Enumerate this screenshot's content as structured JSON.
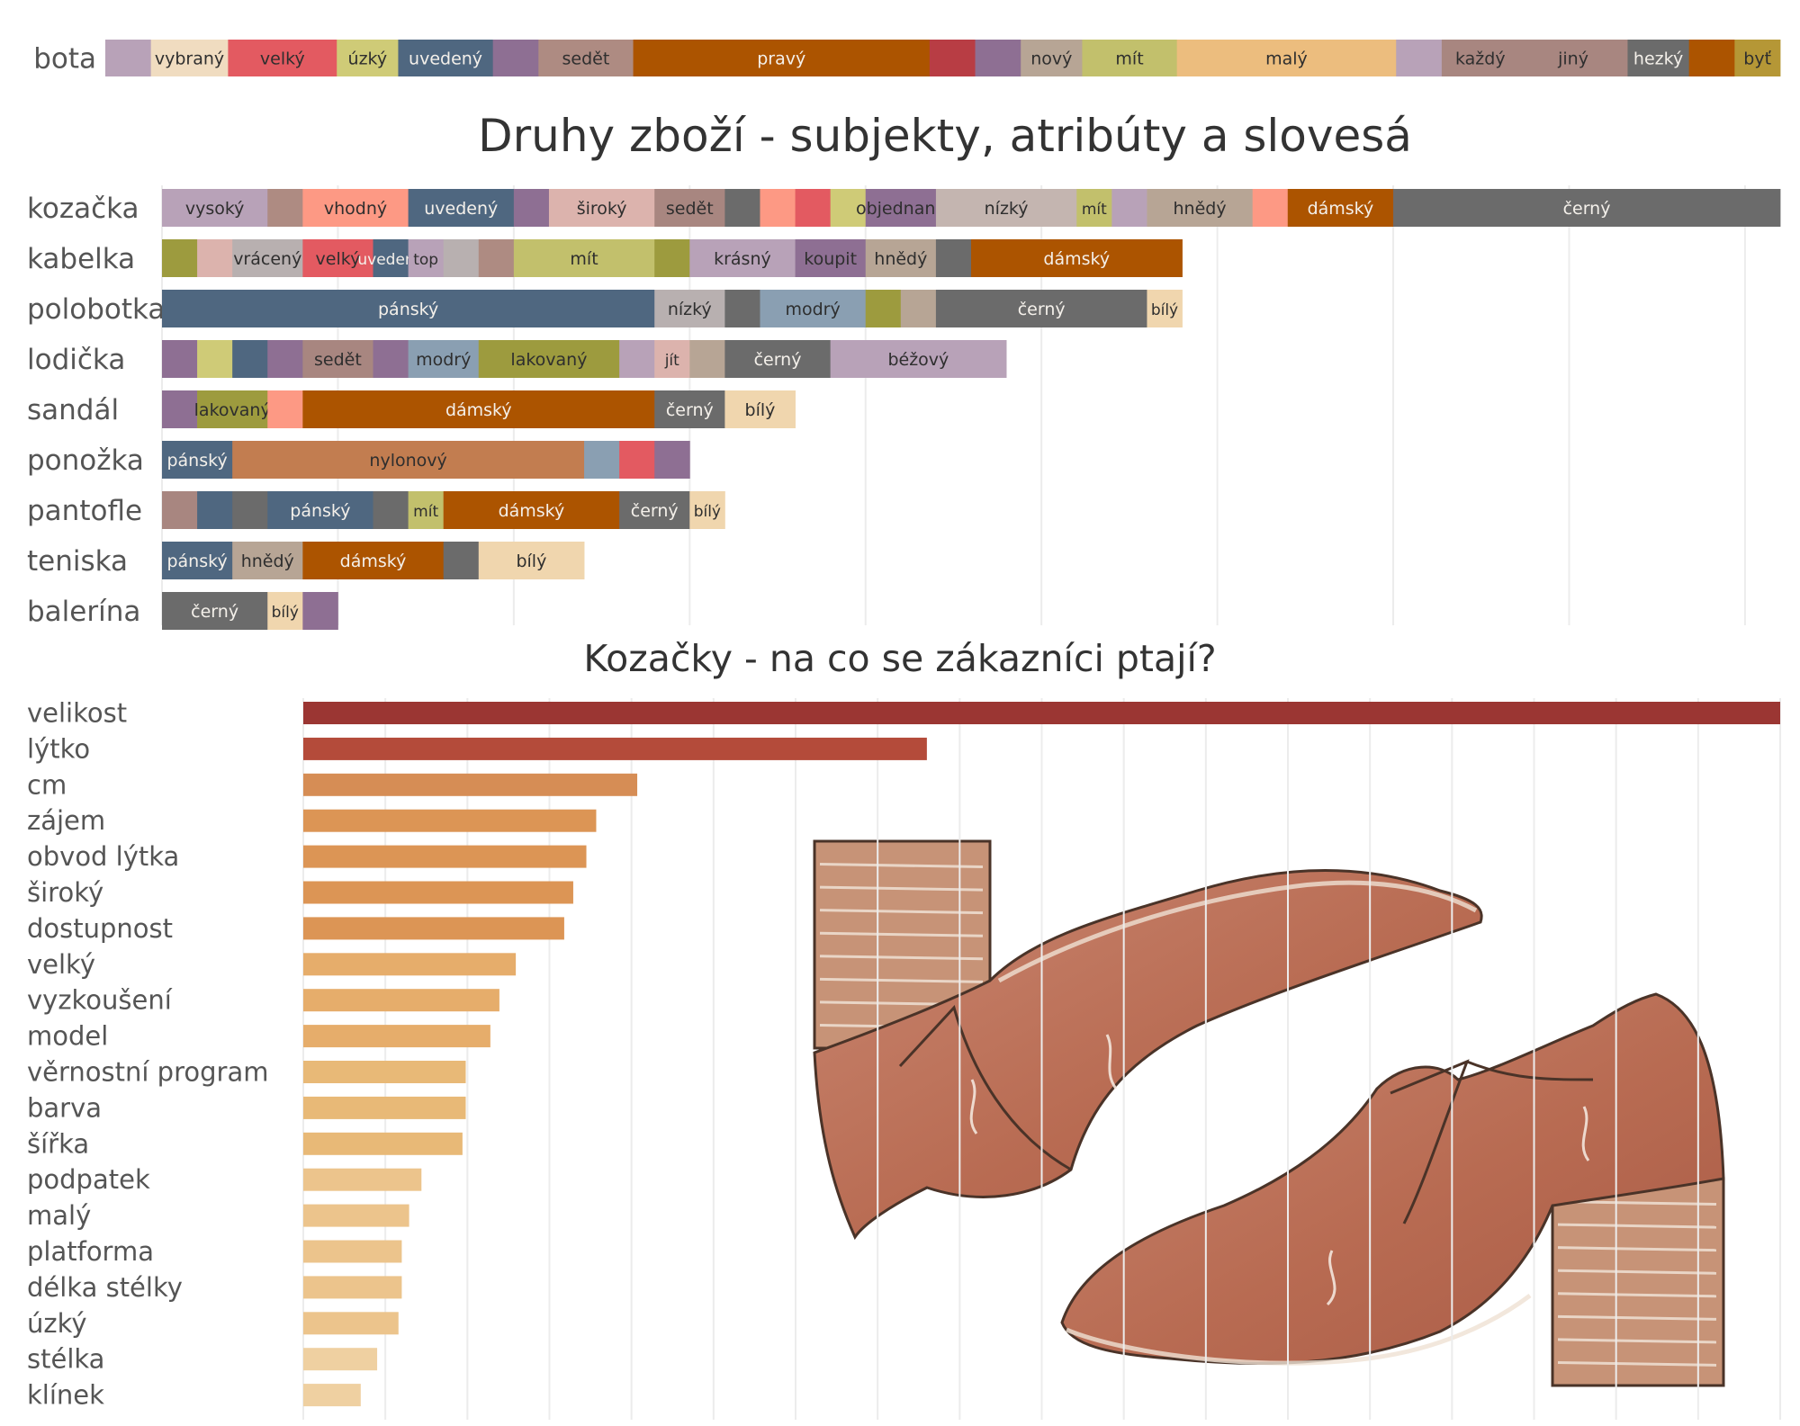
{
  "titles": {
    "main": "Druhy zboží - subjekty, atribúty a slovesá",
    "sub": "Kozačky - na co se zákazníci ptají?"
  },
  "illustration": {
    "icon": "ankle-boots-watercolor-illustration"
  },
  "chart_data": [
    {
      "type": "bar",
      "stacked": true,
      "orientation": "horizontal",
      "name": "bota",
      "grid": false,
      "rows": [
        {
          "label": "bota",
          "segments": [
            {
              "label": "",
              "value": 2.6,
              "color": "#b8a2b8"
            },
            {
              "label": "vybraný",
              "value": 4.4,
              "color": "#f0dcc0"
            },
            {
              "label": "velký",
              "value": 6.2,
              "color": "#e35a61"
            },
            {
              "label": "úzký",
              "value": 3.5,
              "color": "#cfcb77"
            },
            {
              "label": "uvedený",
              "value": 5.4,
              "color": "#4f6780"
            },
            {
              "label": "",
              "value": 2.6,
              "color": "#8e6f93"
            },
            {
              "label": "sedět",
              "value": 5.4,
              "color": "#ae8b82"
            },
            {
              "label": "pravý",
              "value": 16.9,
              "color": "#ac5400"
            },
            {
              "label": "",
              "value": 2.6,
              "color": "#b83d44"
            },
            {
              "label": "",
              "value": 2.6,
              "color": "#8e6f93"
            },
            {
              "label": "nový",
              "value": 3.5,
              "color": "#b7a595"
            },
            {
              "label": "mít",
              "value": 5.4,
              "color": "#c2c06c"
            },
            {
              "label": "malý",
              "value": 12.5,
              "color": "#ecbd7e"
            },
            {
              "label": "",
              "value": 2.6,
              "color": "#b8a2b8"
            },
            {
              "label": "každý",
              "value": 4.4,
              "color": "#a88680"
            },
            {
              "label": "jiný",
              "value": 6.2,
              "color": "#a88680"
            },
            {
              "label": "hezký",
              "value": 3.5,
              "color": "#6b6b6b"
            },
            {
              "label": "",
              "value": 2.6,
              "color": "#ac5400"
            },
            {
              "label": "byť",
              "value": 2.6,
              "color": "#b59736"
            }
          ]
        }
      ]
    },
    {
      "type": "bar",
      "stacked": true,
      "orientation": "horizontal",
      "title": "Druhy zboží - subjekty, atribúty a slovesá",
      "grid": true,
      "xlim": [
        0,
        46
      ],
      "rows": [
        {
          "label": "kozačka",
          "segments": [
            {
              "label": "vysoký",
              "value": 3,
              "color": "#b8a2b8"
            },
            {
              "label": "",
              "value": 1,
              "color": "#ae8b82"
            },
            {
              "label": "vhodný",
              "value": 3,
              "color": "#fd9984"
            },
            {
              "label": "uvedený",
              "value": 3,
              "color": "#4f6780"
            },
            {
              "label": "",
              "value": 1,
              "color": "#8e6f93"
            },
            {
              "label": "široký",
              "value": 3,
              "color": "#dcb3ad"
            },
            {
              "label": "sedět",
              "value": 2,
              "color": "#a88680"
            },
            {
              "label": "",
              "value": 1,
              "color": "#6b6b6b"
            },
            {
              "label": "",
              "value": 1,
              "color": "#fd9984"
            },
            {
              "label": "",
              "value": 1,
              "color": "#e35a61"
            },
            {
              "label": "",
              "value": 1,
              "color": "#cfcb77"
            },
            {
              "label": "objednaný",
              "value": 2,
              "color": "#8e6f93"
            },
            {
              "label": "nízký",
              "value": 4,
              "color": "#c4b5b0"
            },
            {
              "label": "mít",
              "value": 1,
              "color": "#c2c06c"
            },
            {
              "label": "",
              "value": 1,
              "color": "#b8a2b8"
            },
            {
              "label": "hnědý",
              "value": 3,
              "color": "#b7a595"
            },
            {
              "label": "",
              "value": 1,
              "color": "#fd9984"
            },
            {
              "label": "dámský",
              "value": 3,
              "color": "#ac5400"
            },
            {
              "label": "černý",
              "value": 11,
              "color": "#6b6b6b"
            }
          ]
        },
        {
          "label": "kabelka",
          "segments": [
            {
              "label": "",
              "value": 1,
              "color": "#9d9b3e"
            },
            {
              "label": "",
              "value": 1,
              "color": "#dcb3ad"
            },
            {
              "label": "vrácený",
              "value": 2,
              "color": "#b8b0b0"
            },
            {
              "label": "velký",
              "value": 2,
              "color": "#e35a61"
            },
            {
              "label": "uvedený",
              "value": 1,
              "color": "#4f6780"
            },
            {
              "label": "top",
              "value": 1,
              "color": "#b8a2b8"
            },
            {
              "label": "",
              "value": 1,
              "color": "#b8b0b0"
            },
            {
              "label": "",
              "value": 1,
              "color": "#ae8b82"
            },
            {
              "label": "mít",
              "value": 4,
              "color": "#c2c06c"
            },
            {
              "label": "",
              "value": 1,
              "color": "#9d9b3e"
            },
            {
              "label": "krásný",
              "value": 3,
              "color": "#b8a2b8"
            },
            {
              "label": "koupit",
              "value": 2,
              "color": "#8e6f93"
            },
            {
              "label": "hnědý",
              "value": 2,
              "color": "#b7a595"
            },
            {
              "label": "",
              "value": 1,
              "color": "#6b6b6b"
            },
            {
              "label": "dámský",
              "value": 6,
              "color": "#ac5400"
            }
          ]
        },
        {
          "label": "polobotka",
          "segments": [
            {
              "label": "pánský",
              "value": 14,
              "color": "#4f6780"
            },
            {
              "label": "nízký",
              "value": 2,
              "color": "#b8b0b0"
            },
            {
              "label": "",
              "value": 1,
              "color": "#6b6b6b"
            },
            {
              "label": "modrý",
              "value": 3,
              "color": "#8a9fb2"
            },
            {
              "label": "",
              "value": 1,
              "color": "#9d9b3e"
            },
            {
              "label": "",
              "value": 1,
              "color": "#b7a595"
            },
            {
              "label": "černý",
              "value": 6,
              "color": "#6b6b6b"
            },
            {
              "label": "bílý",
              "value": 1,
              "color": "#f0d6ae"
            }
          ]
        },
        {
          "label": "lodička",
          "segments": [
            {
              "label": "",
              "value": 1,
              "color": "#8e6f93"
            },
            {
              "label": "",
              "value": 1,
              "color": "#cfcb77"
            },
            {
              "label": "",
              "value": 1,
              "color": "#4f6780"
            },
            {
              "label": "",
              "value": 1,
              "color": "#8e6f93"
            },
            {
              "label": "sedět",
              "value": 2,
              "color": "#a88680"
            },
            {
              "label": "",
              "value": 1,
              "color": "#8e6f93"
            },
            {
              "label": "modrý",
              "value": 2,
              "color": "#8a9fb2"
            },
            {
              "label": "lakovaný",
              "value": 4,
              "color": "#9d9b3e"
            },
            {
              "label": "",
              "value": 1,
              "color": "#b8a2b8"
            },
            {
              "label": "jít",
              "value": 1,
              "color": "#dcb3ad"
            },
            {
              "label": "",
              "value": 1,
              "color": "#b7a595"
            },
            {
              "label": "černý",
              "value": 3,
              "color": "#6b6b6b"
            },
            {
              "label": "béžový",
              "value": 5,
              "color": "#b8a2b8"
            }
          ]
        },
        {
          "label": "sandál",
          "segments": [
            {
              "label": "",
              "value": 1,
              "color": "#8e6f93"
            },
            {
              "label": "lakovaný",
              "value": 2,
              "color": "#9d9b3e"
            },
            {
              "label": "",
              "value": 1,
              "color": "#fd9984"
            },
            {
              "label": "dámský",
              "value": 10,
              "color": "#ac5400"
            },
            {
              "label": "černý",
              "value": 2,
              "color": "#6b6b6b"
            },
            {
              "label": "bílý",
              "value": 2,
              "color": "#f0d6ae"
            }
          ]
        },
        {
          "label": "ponožka",
          "segments": [
            {
              "label": "pánský",
              "value": 2,
              "color": "#4f6780"
            },
            {
              "label": "nylonový",
              "value": 10,
              "color": "#c27d50"
            },
            {
              "label": "",
              "value": 1,
              "color": "#8a9fb2"
            },
            {
              "label": "",
              "value": 1,
              "color": "#e35a61"
            },
            {
              "label": "",
              "value": 1,
              "color": "#8e6f93"
            }
          ]
        },
        {
          "label": "pantofle",
          "segments": [
            {
              "label": "",
              "value": 1,
              "color": "#a88680"
            },
            {
              "label": "",
              "value": 1,
              "color": "#4f6780"
            },
            {
              "label": "",
              "value": 1,
              "color": "#6b6b6b"
            },
            {
              "label": "pánský",
              "value": 3,
              "color": "#4f6780"
            },
            {
              "label": "",
              "value": 1,
              "color": "#6b6b6b"
            },
            {
              "label": "mít",
              "value": 1,
              "color": "#c2c06c"
            },
            {
              "label": "dámský",
              "value": 5,
              "color": "#ac5400"
            },
            {
              "label": "černý",
              "value": 2,
              "color": "#6b6b6b"
            },
            {
              "label": "bílý",
              "value": 1,
              "color": "#f0d6ae"
            }
          ]
        },
        {
          "label": "teniska",
          "segments": [
            {
              "label": "pánský",
              "value": 2,
              "color": "#4f6780"
            },
            {
              "label": "hnědý",
              "value": 2,
              "color": "#b7a595"
            },
            {
              "label": "dámský",
              "value": 4,
              "color": "#ac5400"
            },
            {
              "label": "",
              "value": 1,
              "color": "#6b6b6b"
            },
            {
              "label": "bílý",
              "value": 3,
              "color": "#f0d6ae"
            }
          ]
        },
        {
          "label": "balerína",
          "segments": [
            {
              "label": "černý",
              "value": 3,
              "color": "#6b6b6b"
            },
            {
              "label": "bílý",
              "value": 1,
              "color": "#f0d6ae"
            },
            {
              "label": "",
              "value": 1,
              "color": "#8e6f93"
            }
          ]
        }
      ]
    },
    {
      "type": "bar",
      "orientation": "horizontal",
      "title": "Kozačky - na co se zákazníci ptají?",
      "grid": true,
      "xlim": [
        0,
        18
      ],
      "categories": [
        "velikost",
        "lýtko",
        "cm",
        "zájem",
        "obvod lýtka",
        "široký",
        "dostupnost",
        "velký",
        "vyzkoušení",
        "model",
        "věrnostní program",
        "barva",
        "šířka",
        "podpatek",
        "malý",
        "platforma",
        "délka stélky",
        "úzký",
        "stélka",
        "klínek"
      ],
      "values": [
        18,
        7.6,
        4.07,
        3.57,
        3.45,
        3.29,
        3.18,
        2.59,
        2.39,
        2.28,
        1.98,
        1.98,
        1.94,
        1.44,
        1.29,
        1.2,
        1.2,
        1.16,
        0.9,
        0.7
      ],
      "colors": [
        "#9b3633",
        "#b44b3a",
        "#d68d55",
        "#dc9555",
        "#dc9555",
        "#dc9555",
        "#dc9555",
        "#e6ad6b",
        "#e6ad6b",
        "#e6ad6b",
        "#e8b977",
        "#e8b977",
        "#e8b977",
        "#ecc48c",
        "#ecc48c",
        "#ecc48c",
        "#ecc48c",
        "#ecc48c",
        "#efd0a1",
        "#efd0a1"
      ]
    }
  ]
}
